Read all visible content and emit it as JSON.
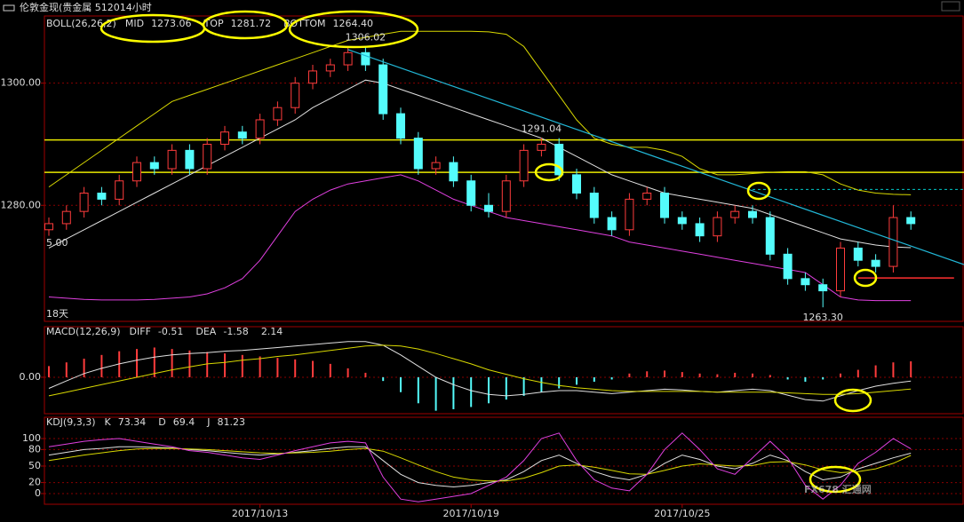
{
  "watermark": "FX678 汇通网",
  "chart_data": [
    {
      "type": "candlestick",
      "title": "伦敦金现(贵金属 512014小时",
      "indicator": "BOLL(26,26,2)",
      "ylim": [
        1261,
        1311
      ],
      "yticks": [
        {
          "value": 1280,
          "label": "1280.00"
        },
        {
          "value": 1300,
          "label": "1300.00"
        }
      ],
      "categories": [
        null,
        null,
        null,
        null,
        null,
        null,
        null,
        null,
        null,
        null,
        null,
        null,
        "2017/10/13",
        null,
        null,
        null,
        null,
        null,
        null,
        null,
        null,
        null,
        null,
        null,
        "2017/10/19",
        null,
        null,
        null,
        null,
        null,
        null,
        null,
        null,
        null,
        null,
        null,
        "2017/10/25",
        null,
        null,
        null,
        null,
        null,
        null,
        null,
        null,
        null,
        null,
        null,
        null,
        null
      ],
      "up_color": "#ff3c3c",
      "down_color": "#54fcfc",
      "ohlc": [
        [
          1276,
          1278,
          1275,
          1277
        ],
        [
          1277,
          1280,
          1276,
          1279
        ],
        [
          1279,
          1283,
          1278,
          1282
        ],
        [
          1282,
          1283,
          1280,
          1281
        ],
        [
          1281,
          1285,
          1280,
          1284
        ],
        [
          1284,
          1288,
          1283,
          1287
        ],
        [
          1287,
          1288,
          1285,
          1286
        ],
        [
          1286,
          1290,
          1285,
          1289
        ],
        [
          1289,
          1290,
          1285,
          1286
        ],
        [
          1286,
          1291,
          1285,
          1290
        ],
        [
          1290,
          1293,
          1289,
          1292
        ],
        [
          1292,
          1293,
          1290,
          1291
        ],
        [
          1291,
          1295,
          1290,
          1294
        ],
        [
          1294,
          1297,
          1293,
          1296
        ],
        [
          1296,
          1301,
          1295,
          1300
        ],
        [
          1300,
          1303,
          1299,
          1302
        ],
        [
          1302,
          1304,
          1301,
          1303
        ],
        [
          1303,
          1306,
          1302,
          1305
        ],
        [
          1305,
          1306.02,
          1302,
          1303
        ],
        [
          1303,
          1304,
          1294,
          1295
        ],
        [
          1295,
          1296,
          1290,
          1291
        ],
        [
          1291,
          1292,
          1285,
          1286
        ],
        [
          1286,
          1288,
          1285,
          1287
        ],
        [
          1287,
          1288,
          1283,
          1284
        ],
        [
          1284,
          1285,
          1279,
          1280
        ],
        [
          1280,
          1282,
          1278,
          1279
        ],
        [
          1279,
          1285,
          1278,
          1284
        ],
        [
          1284,
          1290,
          1283,
          1289
        ],
        [
          1289,
          1291.04,
          1288,
          1290
        ],
        [
          1290,
          1291,
          1284,
          1285
        ],
        [
          1285,
          1286,
          1281,
          1282
        ],
        [
          1282,
          1283,
          1277,
          1278
        ],
        [
          1278,
          1279,
          1275,
          1276
        ],
        [
          1276,
          1282,
          1275,
          1281
        ],
        [
          1281,
          1283,
          1280,
          1282
        ],
        [
          1282,
          1283,
          1277,
          1278
        ],
        [
          1278,
          1279,
          1276,
          1277
        ],
        [
          1277,
          1278,
          1274,
          1275
        ],
        [
          1275,
          1279,
          1274,
          1278
        ],
        [
          1278,
          1280,
          1277,
          1279
        ],
        [
          1279,
          1280,
          1277,
          1278
        ],
        [
          1278,
          1279,
          1271,
          1272
        ],
        [
          1272,
          1273,
          1267,
          1268
        ],
        [
          1268,
          1269,
          1266,
          1267
        ],
        [
          1267,
          1268,
          1263.3,
          1266
        ],
        [
          1266,
          1274,
          1265,
          1273
        ],
        [
          1273,
          1274,
          1270,
          1271
        ],
        [
          1271,
          1272,
          1269,
          1270
        ],
        [
          1270,
          1280,
          1269,
          1278
        ],
        [
          1278,
          1279,
          1276,
          1277
        ]
      ],
      "series": [
        {
          "name": "MID",
          "color": "#e0e0e0",
          "values": [
            1273,
            1274.5,
            1276,
            1277.5,
            1279,
            1280.5,
            1282,
            1283.5,
            1285,
            1286.5,
            1288,
            1289.5,
            1291,
            1292.5,
            1294,
            1296,
            1297.5,
            1299,
            1300.5,
            1300,
            1299,
            1298,
            1297,
            1296,
            1295,
            1294,
            1293,
            1292,
            1291,
            1289.5,
            1288,
            1286.5,
            1285,
            1284,
            1283,
            1282,
            1281.5,
            1281,
            1280.5,
            1280,
            1279.5,
            1278.5,
            1277.5,
            1276.5,
            1275.5,
            1274.5,
            1274,
            1273.5,
            1273.2,
            1273.06
          ]
        },
        {
          "name": "TOP",
          "color": "#d8d800",
          "values": [
            1283,
            1285,
            1287,
            1289,
            1291,
            1293,
            1295,
            1297,
            1298,
            1299,
            1300,
            1301,
            1302,
            1303,
            1304,
            1305,
            1306,
            1307,
            1307.5,
            1308,
            1308.5,
            1308.5,
            1308.5,
            1308.5,
            1308.5,
            1308.4,
            1308,
            1306,
            1302,
            1298,
            1294,
            1291,
            1290,
            1289.5,
            1289.5,
            1289,
            1288,
            1286,
            1285,
            1285,
            1285.2,
            1285.4,
            1285.5,
            1285.5,
            1285,
            1283.5,
            1282.5,
            1282,
            1281.8,
            1281.72
          ]
        },
        {
          "name": "BOTTOM",
          "color": "#e040e0",
          "value_label": "1264.40",
          "values": [
            1265,
            1264.8,
            1264.6,
            1264.5,
            1264.5,
            1264.5,
            1264.6,
            1264.8,
            1265,
            1265.5,
            1266.5,
            1268,
            1271,
            1275,
            1279,
            1281,
            1282.5,
            1283.5,
            1284,
            1284.5,
            1285,
            1284,
            1282.5,
            1281,
            1280,
            1279,
            1278,
            1277.5,
            1277,
            1276.5,
            1276,
            1275.5,
            1275,
            1274,
            1273.5,
            1273,
            1272.5,
            1272,
            1271.5,
            1271,
            1270.5,
            1270,
            1269.5,
            1269,
            1267,
            1265,
            1264.5,
            1264.4,
            1264.4,
            1264.4
          ]
        }
      ],
      "levels": [
        {
          "value": 1290.7,
          "color": "#e8e800"
        },
        {
          "value": 1285.4,
          "color": "#e8e800"
        },
        {
          "value": 1282.6,
          "color": "#00c8c8",
          "dashed": true,
          "from": 40
        },
        {
          "value": 1268.1,
          "color": "#ff3030",
          "from": 46
        }
      ],
      "trendline": {
        "color": "#22b8d8",
        "from": 17,
        "start": 1305.5,
        "end": 1270.3
      },
      "annotations": [
        {
          "text": "1306.02",
          "color": "#ff4040"
        },
        {
          "text": "1291.04",
          "color": "#ff4040"
        },
        {
          "text": "1263.30",
          "color": "#54fcfc"
        }
      ],
      "notes": [
        "5.00",
        "18天"
      ]
    },
    {
      "type": "macd",
      "indicator": "MACD(12,26,9)",
      "ylim": [
        -4.9,
        6.8
      ],
      "yticks": [
        {
          "value": 0,
          "label": "0.00"
        }
      ],
      "up_color": "#ff3c3c",
      "down_color": "#54fcfc",
      "hist": [
        1.5,
        2,
        2.5,
        3,
        3.5,
        3.8,
        4,
        3.8,
        3.6,
        3.4,
        3.2,
        3,
        2.8,
        2.6,
        2.4,
        2.2,
        1.8,
        1.2,
        0.6,
        -0.5,
        -2,
        -3.5,
        -4.5,
        -4.3,
        -4,
        -3.5,
        -3,
        -2.5,
        -2,
        -1.5,
        -1,
        -0.6,
        -0.3,
        0.5,
        0.8,
        0.9,
        0.7,
        0.5,
        0.4,
        0.6,
        0.5,
        0.3,
        -0.3,
        -0.6,
        -0.3,
        0.5,
        1,
        1.6,
        2,
        2.14
      ],
      "series": [
        {
          "name": "DIFF",
          "color": "#e0e0e0",
          "values": [
            -1.5,
            -0.5,
            0.5,
            1.2,
            1.8,
            2.3,
            2.7,
            3,
            3.2,
            3.3,
            3.5,
            3.6,
            3.8,
            4,
            4.2,
            4.4,
            4.6,
            4.8,
            4.8,
            4.3,
            3,
            1.5,
            0,
            -1,
            -1.8,
            -2.3,
            -2.5,
            -2.3,
            -2,
            -1.8,
            -1.8,
            -2,
            -2.2,
            -2,
            -1.8,
            -1.6,
            -1.7,
            -1.9,
            -2,
            -1.8,
            -1.6,
            -1.8,
            -2.4,
            -3,
            -3.2,
            -2.5,
            -1.8,
            -1.2,
            -0.8,
            -0.51
          ]
        },
        {
          "name": "DEA",
          "color": "#d8d800",
          "values": [
            -2.5,
            -2,
            -1.5,
            -1,
            -0.5,
            0,
            0.5,
            1,
            1.4,
            1.8,
            2,
            2.3,
            2.5,
            2.8,
            3,
            3.3,
            3.6,
            3.9,
            4.2,
            4.3,
            4.2,
            3.8,
            3.2,
            2.5,
            1.8,
            1,
            0.4,
            -0.2,
            -0.7,
            -1.1,
            -1.4,
            -1.6,
            -1.8,
            -1.9,
            -1.9,
            -1.9,
            -1.9,
            -1.9,
            -2,
            -2,
            -2,
            -2,
            -2.1,
            -2.2,
            -2.3,
            -2.3,
            -2.2,
            -2,
            -1.8,
            -1.58
          ]
        }
      ]
    },
    {
      "type": "kdj",
      "indicator": "KDJ(9,3,3)",
      "ylim": [
        -19.4,
        138.7
      ],
      "yticks": [
        0,
        20,
        50,
        80,
        100
      ],
      "series": [
        {
          "name": "K",
          "color": "#e0e0e0",
          "values": [
            70,
            75,
            80,
            82,
            85,
            85,
            84,
            83,
            80,
            78,
            75,
            72,
            70,
            72,
            75,
            78,
            82,
            85,
            85,
            60,
            35,
            20,
            15,
            12,
            15,
            20,
            25,
            40,
            60,
            70,
            55,
            40,
            30,
            25,
            35,
            55,
            70,
            62,
            50,
            45,
            55,
            70,
            60,
            40,
            25,
            30,
            45,
            55,
            65,
            73.34
          ]
        },
        {
          "name": "D",
          "color": "#d8d800",
          "values": [
            60,
            65,
            70,
            74,
            78,
            81,
            82,
            82,
            81,
            80,
            78,
            76,
            74,
            73,
            74,
            75,
            77,
            80,
            82,
            77,
            65,
            52,
            40,
            30,
            25,
            23,
            23,
            28,
            38,
            50,
            52,
            48,
            42,
            36,
            35,
            42,
            50,
            54,
            52,
            50,
            51,
            57,
            58,
            52,
            43,
            38,
            40,
            45,
            55,
            69.4
          ]
        },
        {
          "name": "J",
          "color": "#e040e0",
          "values": [
            85,
            90,
            95,
            98,
            100,
            95,
            90,
            85,
            78,
            75,
            70,
            65,
            62,
            70,
            78,
            85,
            92,
            95,
            92,
            30,
            -10,
            -15,
            -10,
            -5,
            0,
            15,
            30,
            60,
            100,
            110,
            60,
            25,
            10,
            5,
            35,
            80,
            110,
            80,
            45,
            35,
            65,
            95,
            65,
            15,
            -10,
            15,
            55,
            75,
            100,
            81.23
          ]
        }
      ]
    }
  ]
}
